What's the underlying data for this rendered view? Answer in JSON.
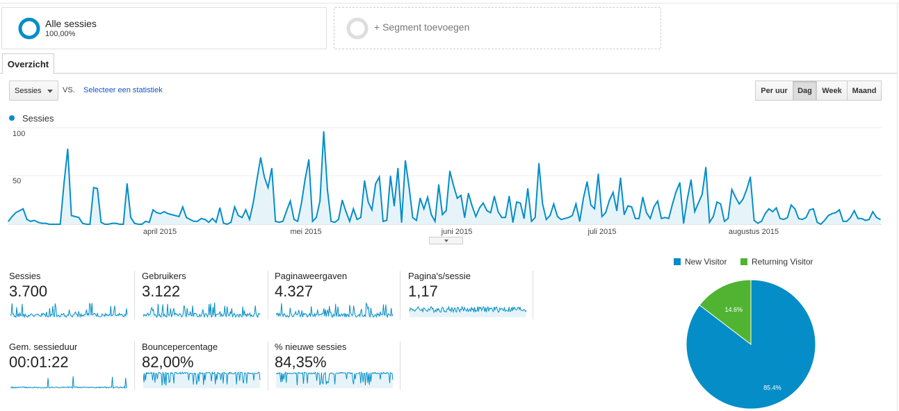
{
  "segments": {
    "all_name": "Alle sessies",
    "all_pct": "100,00%",
    "add_label": "+ Segment toevoegen"
  },
  "tabs": {
    "overview": "Overzicht"
  },
  "controls": {
    "metric_select": "Sessies",
    "vs": "VS.",
    "select_stat": "Selecteer een statistiek",
    "granularity": [
      "Per uur",
      "Dag",
      "Week",
      "Maand"
    ],
    "granularity_active": "Dag"
  },
  "colors": {
    "series": "#058dc7",
    "area": "#e6f4fa",
    "new_visitor": "#058dc7",
    "returning_visitor": "#50b432"
  },
  "chart_data": [
    {
      "type": "area",
      "series": [
        {
          "name": "Sessies"
        }
      ],
      "yticks": [
        "100",
        "50"
      ],
      "ylim": [
        0,
        100
      ],
      "xtick_labels": [
        "april 2015",
        "mei 2015",
        "juni 2015",
        "juli 2015",
        "augustus 2015"
      ],
      "grid": true,
      "values": [
        3,
        8,
        12,
        14,
        16,
        5,
        3,
        4,
        2,
        1,
        1,
        0,
        0,
        0,
        0,
        42,
        78,
        9,
        8,
        7,
        1,
        0,
        0,
        38,
        37,
        2,
        0,
        0,
        1,
        1,
        0,
        0,
        42,
        7,
        1,
        0,
        0,
        3,
        2,
        15,
        12,
        11,
        13,
        11,
        10,
        9,
        8,
        18,
        7,
        5,
        3,
        3,
        6,
        5,
        2,
        6,
        2,
        17,
        1,
        0,
        2,
        18,
        9,
        7,
        15,
        5,
        22,
        46,
        69,
        49,
        38,
        58,
        3,
        2,
        3,
        14,
        24,
        5,
        3,
        22,
        47,
        67,
        3,
        7,
        24,
        96,
        36,
        3,
        2,
        5,
        25,
        13,
        3,
        16,
        5,
        7,
        45,
        23,
        15,
        42,
        49,
        3,
        4,
        50,
        19,
        58,
        2,
        66,
        39,
        7,
        4,
        27,
        16,
        28,
        10,
        3,
        41,
        10,
        14,
        55,
        40,
        27,
        30,
        7,
        32,
        19,
        8,
        17,
        22,
        14,
        12,
        29,
        13,
        7,
        7,
        29,
        2,
        23,
        22,
        6,
        37,
        3,
        7,
        63,
        21,
        5,
        9,
        21,
        8,
        5,
        6,
        7,
        9,
        21,
        3,
        27,
        44,
        20,
        16,
        52,
        8,
        12,
        25,
        33,
        14,
        48,
        10,
        19,
        18,
        6,
        6,
        28,
        12,
        6,
        18,
        24,
        6,
        7,
        6,
        21,
        34,
        43,
        1,
        26,
        46,
        13,
        22,
        31,
        59,
        2,
        8,
        23,
        21,
        3,
        6,
        36,
        28,
        21,
        26,
        36,
        49,
        4,
        1,
        3,
        11,
        16,
        13,
        17,
        6,
        5,
        7,
        20,
        16,
        6,
        5,
        7,
        15,
        16,
        2,
        0,
        4,
        9,
        11,
        12,
        15,
        3,
        3,
        7,
        14,
        6,
        6,
        4,
        5,
        13,
        7,
        5
      ],
      "metrics_note": ""
    },
    {
      "type": "pie",
      "categories": [
        "New Visitor",
        "Returning Visitor"
      ],
      "values": [
        85.4,
        14.6
      ],
      "labels": [
        "85.4%",
        "14.6%"
      ],
      "legend": "top"
    }
  ],
  "metrics": [
    {
      "name": "Sessies",
      "value": "3.700"
    },
    {
      "name": "Gebruikers",
      "value": "3.122"
    },
    {
      "name": "Paginaweergaven",
      "value": "4.327"
    },
    {
      "name": "Pagina's/sessie",
      "value": "1,17"
    },
    {
      "name": "Gem. sessieduur",
      "value": "00:01:22"
    },
    {
      "name": "Bouncepercentage",
      "value": "82,00%"
    },
    {
      "name": "% nieuwe sessies",
      "value": "84,35%"
    }
  ],
  "pie_legend": {
    "new": "New Visitor",
    "returning": "Returning Visitor"
  }
}
